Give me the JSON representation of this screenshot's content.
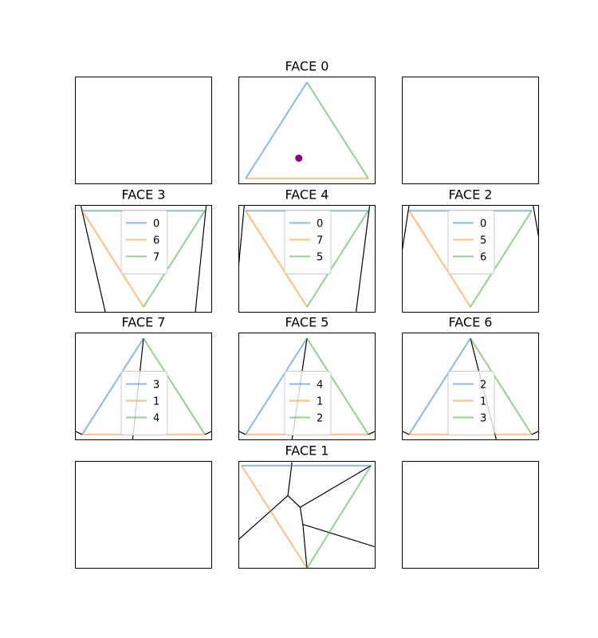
{
  "chart_data": [
    {
      "type": "line",
      "title": "",
      "series": [],
      "dot": null,
      "black_lines": []
    },
    {
      "type": "line",
      "title": "FACE 0",
      "series": [
        {
          "color": "#1f77b4",
          "points": [
            [
              0.5,
              0.95
            ],
            [
              0.05,
              0.05
            ]
          ]
        },
        {
          "color": "#ff7f0e",
          "points": [
            [
              0.05,
              0.05
            ],
            [
              0.95,
              0.05
            ]
          ]
        },
        {
          "color": "#2ca02c",
          "points": [
            [
              0.95,
              0.05
            ],
            [
              0.5,
              0.95
            ]
          ]
        }
      ],
      "dot": {
        "color": "#800080",
        "point": [
          0.44,
          0.24
        ]
      },
      "black_lines": []
    },
    {
      "type": "line",
      "title": "",
      "series": [],
      "dot": null,
      "black_lines": []
    },
    {
      "type": "line",
      "title": "FACE 3",
      "series": [
        {
          "name": "0",
          "color": "#1f77b4",
          "points": [
            [
              0.05,
              0.95
            ],
            [
              0.95,
              0.95
            ]
          ]
        },
        {
          "name": "6",
          "color": "#ff7f0e",
          "points": [
            [
              0.05,
              0.95
            ],
            [
              0.5,
              0.05
            ]
          ]
        },
        {
          "name": "7",
          "color": "#2ca02c",
          "points": [
            [
              0.5,
              0.05
            ],
            [
              0.95,
              0.95
            ]
          ]
        }
      ],
      "dot": null,
      "black_lines": [
        [
          [
            0.04,
            1.0
          ],
          [
            0.22,
            0.0
          ]
        ],
        [
          [
            0.96,
            1.0
          ],
          [
            0.88,
            0.0
          ]
        ]
      ]
    },
    {
      "type": "line",
      "title": "FACE 4",
      "series": [
        {
          "name": "0",
          "color": "#1f77b4",
          "points": [
            [
              0.05,
              0.95
            ],
            [
              0.95,
              0.95
            ]
          ]
        },
        {
          "name": "7",
          "color": "#ff7f0e",
          "points": [
            [
              0.05,
              0.95
            ],
            [
              0.5,
              0.05
            ]
          ]
        },
        {
          "name": "5",
          "color": "#2ca02c",
          "points": [
            [
              0.5,
              0.05
            ],
            [
              0.95,
              0.95
            ]
          ]
        }
      ],
      "dot": null,
      "black_lines": [
        [
          [
            0.04,
            1.0
          ],
          [
            0.0,
            0.45
          ]
        ],
        [
          [
            0.96,
            1.0
          ],
          [
            0.86,
            0.0
          ]
        ]
      ]
    },
    {
      "type": "line",
      "title": "FACE 2",
      "series": [
        {
          "name": "0",
          "color": "#1f77b4",
          "points": [
            [
              0.05,
              0.95
            ],
            [
              0.95,
              0.95
            ]
          ]
        },
        {
          "name": "5",
          "color": "#ff7f0e",
          "points": [
            [
              0.05,
              0.95
            ],
            [
              0.5,
              0.05
            ]
          ]
        },
        {
          "name": "6",
          "color": "#2ca02c",
          "points": [
            [
              0.5,
              0.05
            ],
            [
              0.95,
              0.95
            ]
          ]
        }
      ],
      "dot": null,
      "black_lines": [
        [
          [
            0.05,
            1.0
          ],
          [
            0.0,
            0.58
          ]
        ],
        [
          [
            0.96,
            1.0
          ],
          [
            1.0,
            0.71
          ]
        ]
      ]
    },
    {
      "type": "line",
      "title": "FACE 7",
      "series": [
        {
          "name": "3",
          "color": "#1f77b4",
          "points": [
            [
              0.05,
              0.05
            ],
            [
              0.5,
              0.95
            ]
          ]
        },
        {
          "name": "1",
          "color": "#ff7f0e",
          "points": [
            [
              0.05,
              0.05
            ],
            [
              0.95,
              0.05
            ]
          ]
        },
        {
          "name": "4",
          "color": "#2ca02c",
          "points": [
            [
              0.5,
              0.95
            ],
            [
              0.95,
              0.05
            ]
          ]
        }
      ],
      "dot": null,
      "black_lines": [
        [
          [
            0.5,
            0.95
          ],
          [
            0.42,
            0.0
          ]
        ],
        [
          [
            0.05,
            0.05
          ],
          [
            0.0,
            0.08
          ]
        ],
        [
          [
            0.95,
            0.05
          ],
          [
            1.0,
            0.08
          ]
        ]
      ]
    },
    {
      "type": "line",
      "title": "FACE 5",
      "series": [
        {
          "name": "4",
          "color": "#1f77b4",
          "points": [
            [
              0.05,
              0.05
            ],
            [
              0.5,
              0.95
            ]
          ]
        },
        {
          "name": "1",
          "color": "#ff7f0e",
          "points": [
            [
              0.05,
              0.05
            ],
            [
              0.95,
              0.05
            ]
          ]
        },
        {
          "name": "2",
          "color": "#2ca02c",
          "points": [
            [
              0.5,
              0.95
            ],
            [
              0.95,
              0.05
            ]
          ]
        }
      ],
      "dot": null,
      "black_lines": [
        [
          [
            0.5,
            0.95
          ],
          [
            0.39,
            0.0
          ]
        ],
        [
          [
            0.05,
            0.05
          ],
          [
            0.0,
            0.08
          ]
        ],
        [
          [
            0.95,
            0.05
          ],
          [
            1.0,
            0.08
          ]
        ]
      ]
    },
    {
      "type": "line",
      "title": "FACE 6",
      "series": [
        {
          "name": "2",
          "color": "#1f77b4",
          "points": [
            [
              0.05,
              0.05
            ],
            [
              0.5,
              0.95
            ]
          ]
        },
        {
          "name": "1",
          "color": "#ff7f0e",
          "points": [
            [
              0.05,
              0.05
            ],
            [
              0.95,
              0.05
            ]
          ]
        },
        {
          "name": "3",
          "color": "#2ca02c",
          "points": [
            [
              0.5,
              0.95
            ],
            [
              0.95,
              0.05
            ]
          ]
        }
      ],
      "dot": null,
      "black_lines": [
        [
          [
            0.5,
            0.95
          ],
          [
            0.69,
            0.0
          ]
        ],
        [
          [
            0.05,
            0.05
          ],
          [
            0.0,
            0.08
          ]
        ],
        [
          [
            0.95,
            0.05
          ],
          [
            1.0,
            0.08
          ]
        ]
      ]
    },
    {
      "type": "line",
      "title": "",
      "series": [],
      "dot": null,
      "black_lines": []
    },
    {
      "type": "line",
      "title": "FACE 1",
      "series": [
        {
          "color": "#1f77b4",
          "points": [
            [
              0.02,
              0.96
            ],
            [
              0.97,
              0.96
            ]
          ]
        },
        {
          "color": "#ff7f0e",
          "points": [
            [
              0.02,
              0.96
            ],
            [
              0.5,
              0.0
            ]
          ]
        },
        {
          "color": "#2ca02c",
          "points": [
            [
              0.5,
              0.0
            ],
            [
              0.97,
              0.96
            ]
          ]
        }
      ],
      "dot": null,
      "black_lines": [
        [
          [
            0.36,
            0.68
          ],
          [
            0.39,
            0.99
          ]
        ],
        [
          [
            0.36,
            0.68
          ],
          [
            0.0,
            0.27
          ]
        ],
        [
          [
            0.36,
            0.68
          ],
          [
            0.45,
            0.57
          ]
        ],
        [
          [
            0.45,
            0.57
          ],
          [
            0.97,
            0.96
          ]
        ],
        [
          [
            0.45,
            0.57
          ],
          [
            0.47,
            0.41
          ]
        ],
        [
          [
            0.47,
            0.41
          ],
          [
            1.0,
            0.2
          ]
        ],
        [
          [
            0.47,
            0.41
          ],
          [
            0.5,
            0.0
          ]
        ]
      ]
    },
    {
      "type": "line",
      "title": "",
      "series": [],
      "dot": null,
      "black_lines": []
    }
  ]
}
